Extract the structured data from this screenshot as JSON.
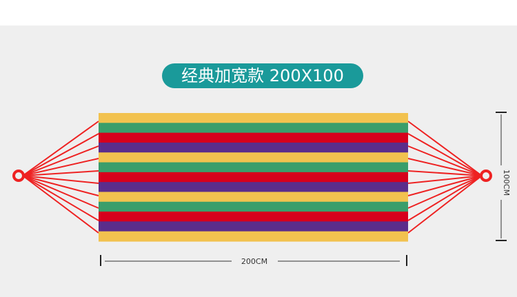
{
  "title": "经典加宽款 200X100",
  "dimensions": {
    "width_label": "200CM",
    "height_label": "100CM"
  },
  "hammock": {
    "stripe_pattern": [
      "yellow",
      "green",
      "red",
      "purple"
    ],
    "stripe_count": 13,
    "ropes_per_side": 10
  },
  "colors": {
    "accent": "#1a9a9a",
    "yellow": "#f2c24f",
    "green": "#3a9e6b",
    "red": "#d7001c",
    "purple": "#5b2d8b",
    "rope": "#ee2222",
    "ring": "#ee2222"
  }
}
